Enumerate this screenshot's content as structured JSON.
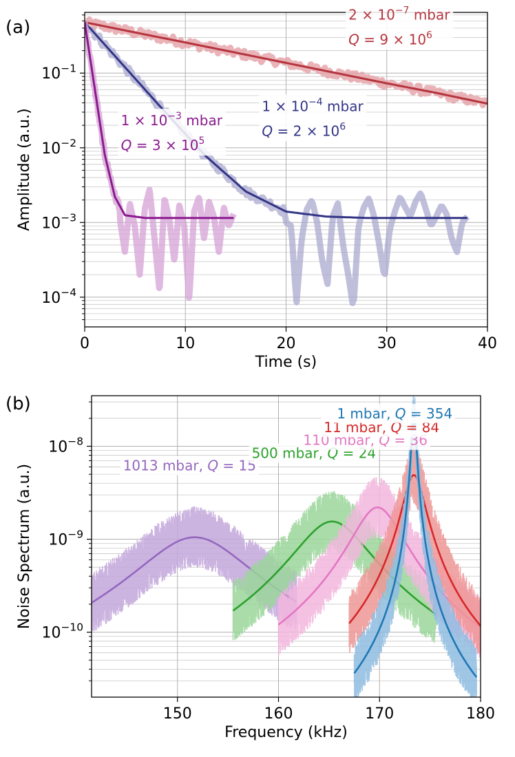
{
  "chart_data": [
    {
      "panel_label": "(a)",
      "type": "line",
      "yscale": "log",
      "xlabel": "Time (s)",
      "ylabel": "Amplitude (a.u.)",
      "xlim": [
        0,
        40
      ],
      "ylim": [
        4e-05,
        0.65
      ],
      "xticks": [
        0,
        10,
        20,
        30,
        40
      ],
      "xtick_labels": [
        "0",
        "10",
        "20",
        "30",
        "40"
      ],
      "yticks": [
        0.0001,
        0.001,
        0.01,
        0.1
      ],
      "ytick_labels": [
        {
          "base": "10",
          "exp": "−4"
        },
        {
          "base": "10",
          "exp": "−3"
        },
        {
          "base": "10",
          "exp": "−2"
        },
        {
          "base": "10",
          "exp": "−1"
        }
      ],
      "grid": true,
      "series": [
        {
          "name": "2e-7 mbar",
          "color": "#b5343d",
          "band_color": "#e39aa0",
          "annotation_lines": [
            {
              "prefix": "2 × 10",
              "exp": "−7",
              "suffix": " mbar"
            },
            {
              "prefix": "Q = 9 × 10",
              "exp": "6",
              "suffix": ""
            }
          ],
          "annotation_anchor": {
            "x": 26.2,
            "y": 0.52
          },
          "a0": 0.48,
          "floor": 0,
          "x_start": 0,
          "x_end": 40,
          "x": [
            0,
            5,
            10,
            15,
            20,
            25,
            30,
            35,
            40
          ],
          "y": [
            0.48,
            0.35,
            0.257,
            0.188,
            0.137,
            0.1,
            0.073,
            0.054,
            0.039
          ],
          "noise": null
        },
        {
          "name": "1e-4 mbar",
          "color": "#323486",
          "band_color": "#a9a9cf",
          "annotation_lines": [
            {
              "prefix": "1 × 10",
              "exp": "−4",
              "suffix": " mbar"
            },
            {
              "prefix": "Q = 2 × 10",
              "exp": "6",
              "suffix": ""
            }
          ],
          "annotation_anchor": {
            "x": 17.6,
            "y": 0.031
          },
          "a0": 0.48,
          "floor": 0.00115,
          "x_start": 0,
          "x_end": 38,
          "x": [
            0,
            4,
            8,
            12,
            16,
            20,
            24,
            28,
            32,
            38
          ],
          "y": [
            0.48,
            0.12,
            0.03,
            0.0078,
            0.0026,
            0.0014,
            0.0012,
            0.00115,
            0.00115,
            0.00115
          ],
          "noise": {
            "x_from": 20,
            "x_to": 38,
            "values": [
              0.001,
              0.0009,
              8e-05,
              0.0006,
              0.0015,
              0.002,
              0.001,
              0.0003,
              0.00015,
              0.0012,
              0.0018,
              0.0005,
              0.0002,
              7e-05,
              0.0009,
              0.0016,
              0.0021,
              0.0012,
              0.0005,
              0.00018,
              0.0008,
              0.0014,
              0.0022,
              0.0016,
              0.0012,
              0.0019,
              0.0025,
              0.0015,
              0.0009,
              0.0012,
              0.0017,
              0.0013,
              0.0006,
              0.0004,
              0.001,
              0.0012
            ]
          }
        },
        {
          "name": "1e-3 mbar",
          "color": "#8a1a8e",
          "band_color": "#d6a2d6",
          "annotation_lines": [
            {
              "prefix": "1 × 10",
              "exp": "−3",
              "suffix": " mbar"
            },
            {
              "prefix": "Q = 3 × 10",
              "exp": "5",
              "suffix": ""
            }
          ],
          "annotation_anchor": {
            "x": 3.6,
            "y": 0.02
          },
          "a0": 0.48,
          "floor": 0.00115,
          "x_start": 0,
          "x_end": 14.8,
          "x": [
            0,
            1,
            2,
            3,
            4,
            6,
            10,
            14.8
          ],
          "y": [
            0.48,
            0.062,
            0.008,
            0.0022,
            0.00125,
            0.00115,
            0.00115,
            0.00115
          ],
          "noise": {
            "x_from": 3.5,
            "x_to": 14.8,
            "values": [
              0.0011,
              0.0004,
              0.0018,
              0.0009,
              0.0002,
              0.0015,
              0.0028,
              0.0006,
              0.00012,
              0.0021,
              0.0011,
              0.0003,
              0.0017,
              0.0009,
              9e-05,
              0.0014,
              0.0022,
              0.0006,
              0.0019,
              0.0012,
              0.0004,
              0.0016,
              0.0009,
              0.0013
            ]
          }
        }
      ]
    },
    {
      "panel_label": "(b)",
      "type": "line",
      "yscale": "log",
      "xlabel": "Frequency (kHz)",
      "ylabel": "Noise Spectrum (a.u.)",
      "xlim": [
        141.5,
        180
      ],
      "ylim": [
        2e-11,
        3.5e-08
      ],
      "xticks": [
        150,
        160,
        170,
        180
      ],
      "xtick_labels": [
        "150",
        "160",
        "170",
        "180"
      ],
      "yticks": [
        1e-10,
        1e-09,
        1e-08
      ],
      "ytick_labels": [
        {
          "base": "10",
          "exp": "−10"
        },
        {
          "base": "10",
          "exp": "−9"
        },
        {
          "base": "10",
          "exp": "−8"
        }
      ],
      "grid": true,
      "series": [
        {
          "name": "1013 mbar",
          "label": "1013 mbar, Q = 15",
          "label_parts": {
            "pre": "1013 mbar, ",
            "q": "Q",
            "post": " = 15"
          },
          "color": "#9467bd",
          "band_color": "#c3a7dc",
          "f0": 151.7,
          "Q": 15,
          "peak": 1.05e-09,
          "x_range": [
            141.5,
            161.8
          ],
          "label_anchor": {
            "x": 151.2,
            "y": 5.5e-09
          }
        },
        {
          "name": "500 mbar",
          "label": "500 mbar, Q = 24",
          "label_parts": {
            "pre": "500 mbar, ",
            "q": "Q",
            "post": " = 24"
          },
          "color": "#2ca02c",
          "band_color": "#9ad69a",
          "f0": 165.3,
          "Q": 24,
          "peak": 1.55e-09,
          "x_range": [
            155.5,
            175.6
          ],
          "label_anchor": {
            "x": 163.5,
            "y": 7.5e-09
          }
        },
        {
          "name": "110 mbar",
          "label": "110 mbar, Q = 36",
          "label_parts": {
            "pre": "110 mbar, ",
            "q": "Q",
            "post": " = 36"
          },
          "color": "#e377c2",
          "band_color": "#f2b6dd",
          "f0": 169.8,
          "Q": 36,
          "peak": 2.2e-09,
          "x_range": [
            160,
            180
          ],
          "label_anchor": {
            "x": 168.6,
            "y": 1.03e-08
          }
        },
        {
          "name": "11 mbar",
          "label": "11 mbar, Q = 84",
          "label_parts": {
            "pre": "11 mbar, ",
            "q": "Q",
            "post": " = 84"
          },
          "color": "#d62728",
          "band_color": "#ee9797",
          "f0": 173.4,
          "Q": 84,
          "peak": 4.9e-09,
          "x_range": [
            167,
            180
          ],
          "label_anchor": {
            "x": 170.2,
            "y": 1.42e-08
          }
        },
        {
          "name": "1 mbar",
          "label": "1 mbar, Q = 354",
          "label_parts": {
            "pre": "1 mbar, ",
            "q": "Q",
            "post": " = 354"
          },
          "color": "#1f77b4",
          "band_color": "#8fbce0",
          "f0": 173.4,
          "Q": 354,
          "peak": 2.1e-08,
          "x_range": [
            167.5,
            179.6
          ],
          "label_anchor": {
            "x": 171.5,
            "y": 2e-08
          }
        }
      ]
    }
  ]
}
